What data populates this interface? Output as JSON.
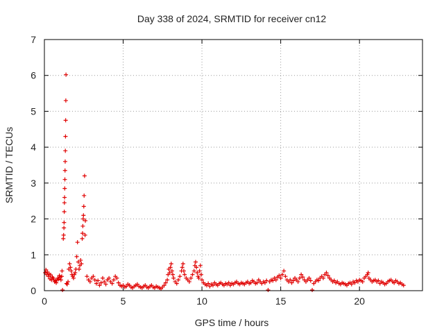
{
  "chart_data": {
    "type": "scatter",
    "title": "Day 338 of 2024, SRMTID for receiver cn12",
    "xlabel": "GPS time / hours",
    "ylabel": "SRMTID / TECUs",
    "xlim": [
      0,
      24
    ],
    "ylim": [
      0,
      7
    ],
    "x_ticks": [
      0,
      5,
      10,
      15,
      20
    ],
    "y_ticks": [
      0,
      1,
      2,
      3,
      4,
      5,
      6,
      7
    ],
    "grid": true,
    "marker": "+",
    "series": [
      {
        "name": "SRMTID",
        "color": "#e00000",
        "points": [
          [
            0.05,
            0.5
          ],
          [
            0.1,
            0.58
          ],
          [
            0.15,
            0.45
          ],
          [
            0.2,
            0.52
          ],
          [
            0.25,
            0.4
          ],
          [
            0.3,
            0.47
          ],
          [
            0.35,
            0.33
          ],
          [
            0.4,
            0.44
          ],
          [
            0.45,
            0.3
          ],
          [
            0.5,
            0.38
          ],
          [
            0.55,
            0.35
          ],
          [
            0.6,
            0.3
          ],
          [
            0.65,
            0.25
          ],
          [
            0.7,
            0.28
          ],
          [
            0.75,
            0.22
          ],
          [
            0.8,
            0.3
          ],
          [
            0.85,
            0.35
          ],
          [
            0.9,
            0.32
          ],
          [
            0.95,
            0.42
          ],
          [
            1.0,
            0.38
          ],
          [
            1.05,
            0.3
          ],
          [
            1.1,
            0.4
          ],
          [
            1.12,
            0.55
          ],
          [
            1.15,
            0.02
          ],
          [
            1.2,
            1.45
          ],
          [
            1.22,
            1.55
          ],
          [
            1.24,
            1.75
          ],
          [
            1.25,
            1.9
          ],
          [
            1.26,
            2.2
          ],
          [
            1.27,
            2.45
          ],
          [
            1.28,
            2.6
          ],
          [
            1.29,
            2.85
          ],
          [
            1.3,
            3.1
          ],
          [
            1.31,
            3.35
          ],
          [
            1.32,
            3.6
          ],
          [
            1.33,
            3.9
          ],
          [
            1.34,
            4.3
          ],
          [
            1.35,
            4.75
          ],
          [
            1.36,
            5.3
          ],
          [
            1.37,
            6.02
          ],
          [
            1.4,
            0.2
          ],
          [
            1.45,
            0.18
          ],
          [
            1.5,
            0.25
          ],
          [
            1.55,
            0.6
          ],
          [
            1.6,
            0.75
          ],
          [
            1.65,
            0.65
          ],
          [
            1.7,
            0.55
          ],
          [
            1.75,
            0.45
          ],
          [
            1.8,
            0.4
          ],
          [
            1.85,
            0.35
          ],
          [
            1.9,
            0.45
          ],
          [
            1.95,
            0.5
          ],
          [
            2.0,
            0.6
          ],
          [
            2.05,
            0.95
          ],
          [
            2.1,
            1.35
          ],
          [
            2.15,
            0.8
          ],
          [
            2.2,
            0.6
          ],
          [
            2.25,
            0.7
          ],
          [
            2.3,
            0.85
          ],
          [
            2.35,
            0.75
          ],
          [
            2.4,
            1.45
          ],
          [
            2.42,
            1.6
          ],
          [
            2.44,
            1.8
          ],
          [
            2.46,
            2.0
          ],
          [
            2.48,
            2.1
          ],
          [
            2.5,
            2.35
          ],
          [
            2.52,
            2.65
          ],
          [
            2.55,
            3.2
          ],
          [
            2.58,
            1.55
          ],
          [
            2.6,
            1.95
          ],
          [
            2.7,
            0.4
          ],
          [
            2.8,
            0.3
          ],
          [
            2.9,
            0.25
          ],
          [
            3.0,
            0.35
          ],
          [
            3.1,
            0.4
          ],
          [
            3.2,
            0.3
          ],
          [
            3.3,
            0.2
          ],
          [
            3.4,
            0.28
          ],
          [
            3.5,
            0.15
          ],
          [
            3.6,
            0.22
          ],
          [
            3.7,
            0.35
          ],
          [
            3.8,
            0.25
          ],
          [
            3.9,
            0.18
          ],
          [
            4.0,
            0.3
          ],
          [
            4.1,
            0.35
          ],
          [
            4.2,
            0.25
          ],
          [
            4.3,
            0.2
          ],
          [
            4.4,
            0.3
          ],
          [
            4.5,
            0.4
          ],
          [
            4.6,
            0.35
          ],
          [
            4.7,
            0.22
          ],
          [
            4.8,
            0.15
          ],
          [
            4.9,
            0.12
          ],
          [
            5.0,
            0.15
          ],
          [
            5.1,
            0.1
          ],
          [
            5.2,
            0.12
          ],
          [
            5.3,
            0.18
          ],
          [
            5.4,
            0.15
          ],
          [
            5.5,
            0.1
          ],
          [
            5.6,
            0.08
          ],
          [
            5.7,
            0.12
          ],
          [
            5.8,
            0.15
          ],
          [
            5.9,
            0.18
          ],
          [
            6.0,
            0.12
          ],
          [
            6.1,
            0.1
          ],
          [
            6.2,
            0.08
          ],
          [
            6.3,
            0.12
          ],
          [
            6.4,
            0.15
          ],
          [
            6.5,
            0.1
          ],
          [
            6.6,
            0.08
          ],
          [
            6.7,
            0.12
          ],
          [
            6.8,
            0.15
          ],
          [
            6.9,
            0.1
          ],
          [
            7.0,
            0.08
          ],
          [
            7.1,
            0.12
          ],
          [
            7.2,
            0.1
          ],
          [
            7.3,
            0.08
          ],
          [
            7.4,
            0.05
          ],
          [
            7.5,
            0.1
          ],
          [
            7.6,
            0.15
          ],
          [
            7.7,
            0.22
          ],
          [
            7.8,
            0.3
          ],
          [
            7.85,
            0.45
          ],
          [
            7.9,
            0.6
          ],
          [
            7.95,
            0.5
          ],
          [
            8.0,
            0.65
          ],
          [
            8.05,
            0.75
          ],
          [
            8.1,
            0.55
          ],
          [
            8.15,
            0.45
          ],
          [
            8.2,
            0.35
          ],
          [
            8.3,
            0.25
          ],
          [
            8.4,
            0.2
          ],
          [
            8.5,
            0.3
          ],
          [
            8.6,
            0.4
          ],
          [
            8.7,
            0.55
          ],
          [
            8.75,
            0.65
          ],
          [
            8.8,
            0.75
          ],
          [
            8.85,
            0.55
          ],
          [
            8.9,
            0.45
          ],
          [
            9.0,
            0.35
          ],
          [
            9.1,
            0.3
          ],
          [
            9.2,
            0.25
          ],
          [
            9.3,
            0.35
          ],
          [
            9.4,
            0.45
          ],
          [
            9.5,
            0.55
          ],
          [
            9.55,
            0.7
          ],
          [
            9.6,
            0.8
          ],
          [
            9.65,
            0.65
          ],
          [
            9.7,
            0.5
          ],
          [
            9.75,
            0.4
          ],
          [
            9.8,
            0.35
          ],
          [
            9.85,
            0.55
          ],
          [
            9.9,
            0.7
          ],
          [
            9.95,
            0.45
          ],
          [
            10.0,
            0.3
          ],
          [
            10.1,
            0.22
          ],
          [
            10.2,
            0.18
          ],
          [
            10.3,
            0.15
          ],
          [
            10.4,
            0.2
          ],
          [
            10.5,
            0.12
          ],
          [
            10.6,
            0.18
          ],
          [
            10.7,
            0.15
          ],
          [
            10.8,
            0.22
          ],
          [
            10.9,
            0.18
          ],
          [
            11.0,
            0.15
          ],
          [
            11.1,
            0.2
          ],
          [
            11.2,
            0.22
          ],
          [
            11.3,
            0.18
          ],
          [
            11.4,
            0.15
          ],
          [
            11.5,
            0.2
          ],
          [
            11.6,
            0.18
          ],
          [
            11.7,
            0.22
          ],
          [
            11.8,
            0.15
          ],
          [
            11.9,
            0.2
          ],
          [
            12.0,
            0.18
          ],
          [
            12.1,
            0.22
          ],
          [
            12.2,
            0.25
          ],
          [
            12.3,
            0.2
          ],
          [
            12.4,
            0.18
          ],
          [
            12.5,
            0.22
          ],
          [
            12.6,
            0.2
          ],
          [
            12.7,
            0.18
          ],
          [
            12.8,
            0.22
          ],
          [
            12.9,
            0.25
          ],
          [
            13.0,
            0.2
          ],
          [
            13.1,
            0.22
          ],
          [
            13.2,
            0.28
          ],
          [
            13.3,
            0.25
          ],
          [
            13.4,
            0.2
          ],
          [
            13.5,
            0.22
          ],
          [
            13.6,
            0.3
          ],
          [
            13.7,
            0.25
          ],
          [
            13.8,
            0.2
          ],
          [
            13.9,
            0.25
          ],
          [
            14.0,
            0.22
          ],
          [
            14.1,
            0.28
          ],
          [
            14.2,
            0.02
          ],
          [
            14.3,
            0.25
          ],
          [
            14.4,
            0.3
          ],
          [
            14.5,
            0.28
          ],
          [
            14.6,
            0.35
          ],
          [
            14.7,
            0.3
          ],
          [
            14.8,
            0.38
          ],
          [
            14.9,
            0.42
          ],
          [
            15.0,
            0.35
          ],
          [
            15.1,
            0.45
          ],
          [
            15.2,
            0.55
          ],
          [
            15.3,
            0.4
          ],
          [
            15.4,
            0.3
          ],
          [
            15.5,
            0.25
          ],
          [
            15.6,
            0.3
          ],
          [
            15.7,
            0.22
          ],
          [
            15.8,
            0.28
          ],
          [
            15.9,
            0.35
          ],
          [
            16.0,
            0.3
          ],
          [
            16.1,
            0.25
          ],
          [
            16.2,
            0.35
          ],
          [
            16.3,
            0.45
          ],
          [
            16.4,
            0.38
          ],
          [
            16.5,
            0.3
          ],
          [
            16.6,
            0.25
          ],
          [
            16.7,
            0.3
          ],
          [
            16.8,
            0.35
          ],
          [
            16.9,
            0.28
          ],
          [
            17.0,
            0.02
          ],
          [
            17.1,
            0.2
          ],
          [
            17.2,
            0.25
          ],
          [
            17.3,
            0.3
          ],
          [
            17.4,
            0.28
          ],
          [
            17.5,
            0.35
          ],
          [
            17.6,
            0.4
          ],
          [
            17.7,
            0.35
          ],
          [
            17.8,
            0.45
          ],
          [
            17.9,
            0.5
          ],
          [
            18.0,
            0.42
          ],
          [
            18.1,
            0.35
          ],
          [
            18.2,
            0.3
          ],
          [
            18.3,
            0.25
          ],
          [
            18.4,
            0.28
          ],
          [
            18.5,
            0.22
          ],
          [
            18.6,
            0.25
          ],
          [
            18.7,
            0.2
          ],
          [
            18.8,
            0.18
          ],
          [
            18.9,
            0.22
          ],
          [
            19.0,
            0.2
          ],
          [
            19.1,
            0.18
          ],
          [
            19.2,
            0.15
          ],
          [
            19.3,
            0.2
          ],
          [
            19.4,
            0.22
          ],
          [
            19.5,
            0.18
          ],
          [
            19.6,
            0.25
          ],
          [
            19.7,
            0.22
          ],
          [
            19.8,
            0.28
          ],
          [
            19.9,
            0.25
          ],
          [
            20.0,
            0.3
          ],
          [
            20.1,
            0.28
          ],
          [
            20.2,
            0.25
          ],
          [
            20.3,
            0.35
          ],
          [
            20.4,
            0.4
          ],
          [
            20.5,
            0.45
          ],
          [
            20.55,
            0.5
          ],
          [
            20.6,
            0.35
          ],
          [
            20.7,
            0.3
          ],
          [
            20.8,
            0.25
          ],
          [
            20.9,
            0.28
          ],
          [
            21.0,
            0.3
          ],
          [
            21.1,
            0.25
          ],
          [
            21.2,
            0.28
          ],
          [
            21.3,
            0.2
          ],
          [
            21.4,
            0.25
          ],
          [
            21.5,
            0.22
          ],
          [
            21.6,
            0.18
          ],
          [
            21.7,
            0.2
          ],
          [
            21.8,
            0.25
          ],
          [
            21.9,
            0.28
          ],
          [
            22.0,
            0.3
          ],
          [
            22.1,
            0.25
          ],
          [
            22.2,
            0.22
          ],
          [
            22.3,
            0.28
          ],
          [
            22.4,
            0.25
          ],
          [
            22.5,
            0.2
          ],
          [
            22.6,
            0.22
          ],
          [
            22.7,
            0.18
          ],
          [
            22.8,
            0.15
          ]
        ]
      }
    ]
  }
}
